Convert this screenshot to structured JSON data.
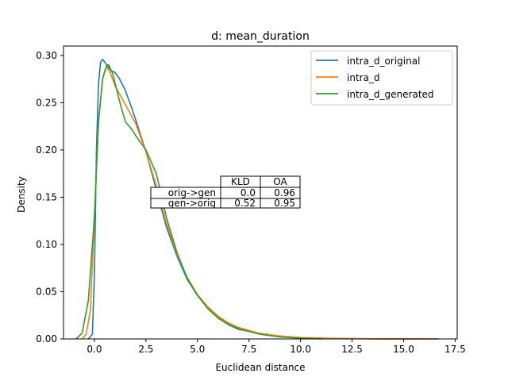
{
  "chart_data": {
    "type": "line",
    "title": "d: mean_duration",
    "xlabel": "Euclidean distance",
    "ylabel": "Density",
    "xlim": [
      -1.5,
      17.6
    ],
    "ylim": [
      0,
      0.31
    ],
    "xticks": [
      0.0,
      2.5,
      5.0,
      7.5,
      10.0,
      12.5,
      15.0,
      17.5
    ],
    "xtick_labels": [
      "0.0",
      "2.5",
      "5.0",
      "7.5",
      "10.0",
      "12.5",
      "15.0",
      "17.5"
    ],
    "yticks": [
      0.0,
      0.05,
      0.1,
      0.15,
      0.2,
      0.25,
      0.3
    ],
    "ytick_labels": [
      "0.00",
      "0.05",
      "0.10",
      "0.15",
      "0.20",
      "0.25",
      "0.30"
    ],
    "grid": false,
    "legend_position": "top-right",
    "series": [
      {
        "name": "intra_d_original",
        "color": "#1f77b4",
        "x": [
          -0.3,
          -0.1,
          0.0,
          0.1,
          0.2,
          0.3,
          0.4,
          0.6,
          0.8,
          1.0,
          1.2,
          1.5,
          1.8,
          2.0,
          2.5,
          3.0,
          3.5,
          4.0,
          4.5,
          5.0,
          5.5,
          6.0,
          6.5,
          7.0,
          7.5,
          8.0,
          9.0,
          10.0,
          12.0,
          14.0,
          16.7
        ],
        "y": [
          0.0,
          0.005,
          0.07,
          0.2,
          0.27,
          0.293,
          0.296,
          0.29,
          0.284,
          0.282,
          0.276,
          0.263,
          0.245,
          0.232,
          0.198,
          0.158,
          0.118,
          0.088,
          0.063,
          0.046,
          0.033,
          0.023,
          0.016,
          0.011,
          0.008,
          0.006,
          0.003,
          0.001,
          0.0003,
          0.0001,
          0.0
        ]
      },
      {
        "name": "intra_d",
        "color": "#ff7f0e",
        "x": [
          -0.6,
          -0.4,
          -0.2,
          0.0,
          0.2,
          0.4,
          0.5,
          0.6,
          0.8,
          1.0,
          1.5,
          2.0,
          2.5,
          3.0,
          3.5,
          4.0,
          4.5,
          5.0,
          5.5,
          6.0,
          6.5,
          7.0,
          7.5,
          8.0,
          9.0,
          10.0,
          12.0,
          14.0,
          16.7
        ],
        "y": [
          0.0,
          0.005,
          0.03,
          0.13,
          0.23,
          0.275,
          0.284,
          0.288,
          0.28,
          0.268,
          0.248,
          0.228,
          0.198,
          0.162,
          0.122,
          0.09,
          0.065,
          0.047,
          0.034,
          0.024,
          0.017,
          0.012,
          0.009,
          0.006,
          0.003,
          0.0015,
          0.0004,
          0.0001,
          0.0
        ]
      },
      {
        "name": "intra_d_generated",
        "color": "#2ca02c",
        "x": [
          -0.9,
          -0.6,
          -0.3,
          0.0,
          0.2,
          0.4,
          0.6,
          0.7,
          0.9,
          1.1,
          1.3,
          1.5,
          1.8,
          2.1,
          2.5,
          3.0,
          3.5,
          4.0,
          4.5,
          5.0,
          5.5,
          6.0,
          6.5,
          7.0,
          7.5,
          8.0,
          9.0,
          10.0,
          11.0
        ],
        "y": [
          0.0,
          0.006,
          0.04,
          0.13,
          0.23,
          0.275,
          0.29,
          0.29,
          0.28,
          0.262,
          0.245,
          0.23,
          0.222,
          0.212,
          0.2,
          0.175,
          0.128,
          0.092,
          0.064,
          0.046,
          0.032,
          0.022,
          0.015,
          0.01,
          0.008,
          0.005,
          0.002,
          0.0008,
          0.0
        ]
      }
    ],
    "table": {
      "col_labels": [
        "KLD",
        "OA"
      ],
      "rows": [
        {
          "label": "orig->gen",
          "values": [
            "0.0",
            "0.96"
          ]
        },
        {
          "label": "gen->orig",
          "values": [
            "0.52",
            "0.95"
          ]
        }
      ]
    }
  }
}
